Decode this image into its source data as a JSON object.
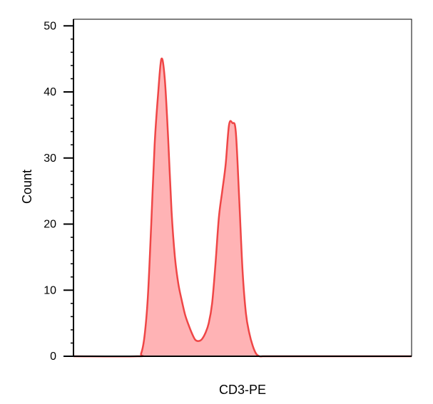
{
  "chart_data": {
    "type": "area",
    "title": "",
    "xlabel": "CD3-PE",
    "ylabel": "Count",
    "ylim": [
      0,
      51
    ],
    "xlim": [
      0,
      1
    ],
    "y_ticks": [
      0,
      10,
      20,
      30,
      40,
      50
    ],
    "y_tick_labels": [
      "0",
      "10",
      "20",
      "30",
      "40",
      "50"
    ],
    "y_minor_step": 2,
    "grid": false,
    "legend": "none",
    "x_tick_labels_shown": false,
    "fill_color": "#ffb3b5",
    "line_color": "#ef4646",
    "series": [
      {
        "x": [
          0.0,
          0.189,
          0.2,
          0.21,
          0.22,
          0.23,
          0.24,
          0.25,
          0.26,
          0.27,
          0.28,
          0.29,
          0.3,
          0.31,
          0.32,
          0.33,
          0.34,
          0.35,
          0.36,
          0.37,
          0.38,
          0.39,
          0.4,
          0.41,
          0.42,
          0.43,
          0.44,
          0.45,
          0.46,
          0.47,
          0.48,
          0.49,
          0.5,
          0.51,
          0.52,
          0.53,
          0.54,
          0.55,
          0.56,
          0.57,
          0.58,
          0.59,
          0.6,
          0.61,
          0.62,
          0.63,
          0.64,
          0.65,
          0.66,
          0.7,
          1.0
        ],
        "y": [
          0.0,
          0.0,
          0.4,
          3.0,
          9.0,
          20.0,
          32.0,
          39.5,
          45.0,
          42.0,
          33.0,
          22.0,
          15.0,
          11.0,
          8.5,
          6.3,
          4.8,
          3.5,
          2.5,
          2.3,
          2.6,
          3.5,
          5.0,
          8.0,
          14.0,
          21.0,
          25.0,
          29.0,
          35.0,
          35.3,
          34.0,
          24.0,
          13.0,
          6.5,
          3.5,
          1.6,
          0.4,
          0.0,
          0.0,
          0.0,
          0.0,
          0.0,
          0.0,
          0.0,
          0.0,
          0.0,
          0.0,
          0.0,
          0.0,
          0.0,
          0.0
        ]
      }
    ]
  }
}
